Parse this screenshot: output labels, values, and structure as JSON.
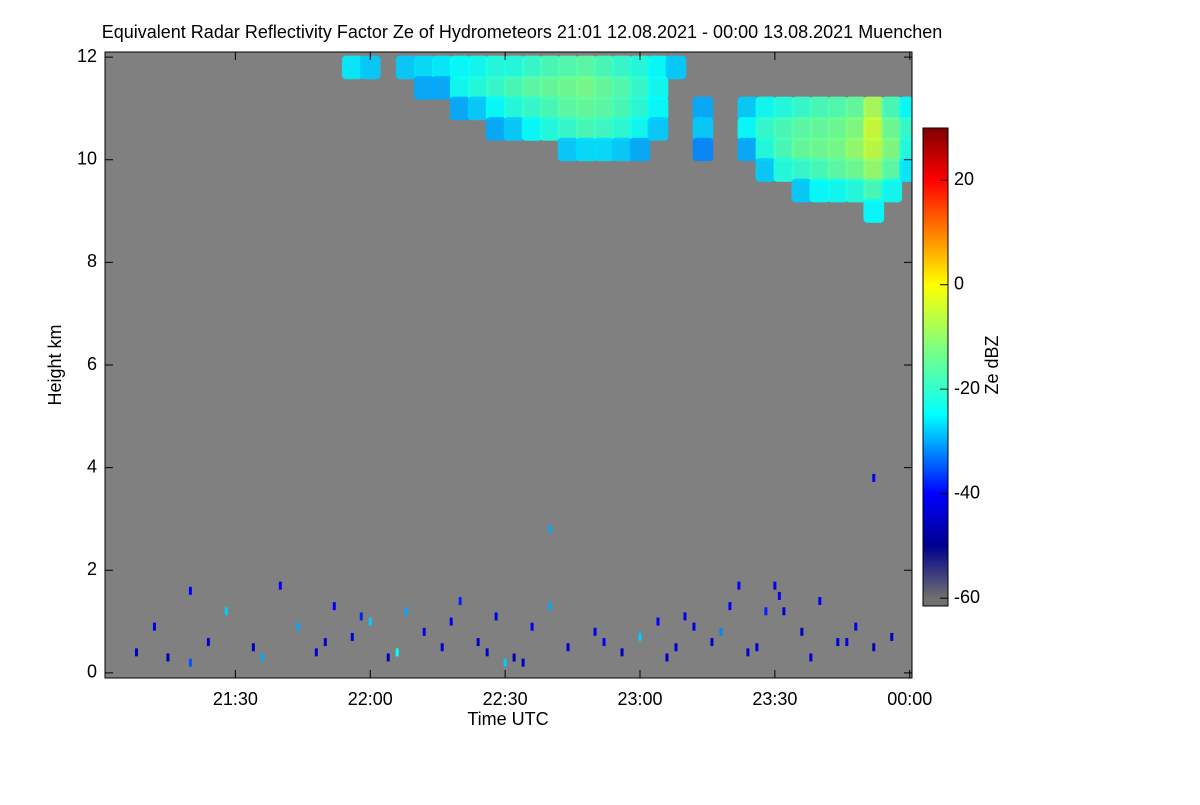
{
  "chart_data": {
    "type": "heatmap",
    "title": "Equivalent Radar Reflectivity Factor Ze of Hydrometeors   21:01 12.08.2021 - 00:00 13.08.2021 Muenchen",
    "x_label": "Time UTC",
    "y_label": "Height km",
    "colorbar_label": "Ze dBZ",
    "xlim": [
      1,
      180.5
    ],
    "xticks": [
      {
        "value": 30,
        "label": "21:30"
      },
      {
        "value": 60,
        "label": "22:00"
      },
      {
        "value": 90,
        "label": "22:30"
      },
      {
        "value": 120,
        "label": "23:00"
      },
      {
        "value": 150,
        "label": "23:30"
      },
      {
        "value": 180,
        "label": "00:00"
      }
    ],
    "ylim": [
      -0.1,
      12.1
    ],
    "yticks": [
      0,
      2,
      4,
      6,
      8,
      10,
      12
    ],
    "zlim": [
      -61.5,
      30
    ],
    "zticks": [
      -60,
      -40,
      -20,
      0,
      20
    ],
    "background": "#808080",
    "colorscale": [
      {
        "value": -60,
        "color": "#707070"
      },
      {
        "value": -50,
        "color": "#00008f"
      },
      {
        "value": -40,
        "color": "#0000ff"
      },
      {
        "value": -25,
        "color": "#00ffff"
      },
      {
        "value": -12,
        "color": "#7fff7f"
      },
      {
        "value": 0,
        "color": "#ffff00"
      },
      {
        "value": 10,
        "color": "#ff8000"
      },
      {
        "value": 20,
        "color": "#ff0000"
      },
      {
        "value": 30,
        "color": "#800000"
      }
    ],
    "cloud_cells": {
      "x": [
        56,
        60,
        68,
        72,
        76,
        72,
        76,
        80,
        80,
        80,
        84,
        84,
        84,
        88,
        88,
        88,
        88,
        92,
        92,
        92,
        92,
        96,
        96,
        96,
        96,
        100,
        100,
        100,
        100,
        104,
        104,
        104,
        104,
        104,
        108,
        108,
        108,
        108,
        108,
        112,
        112,
        112,
        112,
        112,
        116,
        116,
        116,
        116,
        116,
        120,
        120,
        120,
        120,
        120,
        124,
        124,
        124,
        124,
        128,
        134,
        134,
        134,
        144,
        144,
        144,
        148,
        148,
        148,
        148,
        152,
        152,
        152,
        152,
        156,
        156,
        156,
        156,
        156,
        160,
        160,
        160,
        160,
        160,
        164,
        164,
        164,
        164,
        164,
        168,
        168,
        168,
        168,
        168,
        172,
        172,
        172,
        172,
        172,
        172,
        176,
        176,
        176,
        176,
        176,
        180,
        180,
        180,
        180
      ],
      "y": [
        11.8,
        11.8,
        11.8,
        11.8,
        11.8,
        11.4,
        11.4,
        11.8,
        11.4,
        11.0,
        11.8,
        11.4,
        11.0,
        11.8,
        11.4,
        11.0,
        10.6,
        11.8,
        11.4,
        11.0,
        10.6,
        11.8,
        11.4,
        11.0,
        10.6,
        11.8,
        11.4,
        11.0,
        10.6,
        11.8,
        11.4,
        11.0,
        10.6,
        10.2,
        11.8,
        11.4,
        11.0,
        10.6,
        10.2,
        11.8,
        11.4,
        11.0,
        10.6,
        10.2,
        11.8,
        11.4,
        11.0,
        10.6,
        10.2,
        11.8,
        11.4,
        11.0,
        10.6,
        10.2,
        11.8,
        11.4,
        11.0,
        10.6,
        11.8,
        11.0,
        10.6,
        10.2,
        11.0,
        10.6,
        10.2,
        11.0,
        10.6,
        10.2,
        9.8,
        11.0,
        10.6,
        10.2,
        9.8,
        11.0,
        10.6,
        10.2,
        9.8,
        9.4,
        11.0,
        10.6,
        10.2,
        9.8,
        9.4,
        11.0,
        10.6,
        10.2,
        9.8,
        9.4,
        11.0,
        10.6,
        10.2,
        9.8,
        9.4,
        11.0,
        10.6,
        10.2,
        9.8,
        9.4,
        9.0,
        11.0,
        10.6,
        10.2,
        9.8,
        9.4,
        11.0,
        10.6,
        10.2,
        9.8
      ],
      "values": [
        -26,
        -28,
        -28,
        -27,
        -26,
        -30,
        -30,
        -25,
        -24,
        -30,
        -24,
        -22,
        -28,
        -22,
        -20,
        -25,
        -30,
        -22,
        -18,
        -22,
        -28,
        -20,
        -16,
        -20,
        -25,
        -18,
        -15,
        -18,
        -22,
        -17,
        -14,
        -16,
        -20,
        -28,
        -16,
        -13,
        -15,
        -18,
        -27,
        -18,
        -15,
        -16,
        -19,
        -27,
        -20,
        -17,
        -18,
        -21,
        -28,
        -22,
        -20,
        -21,
        -24,
        -30,
        -25,
        -24,
        -25,
        -28,
        -28,
        -30,
        -28,
        -32,
        -28,
        -25,
        -30,
        -24,
        -20,
        -22,
        -28,
        -22,
        -18,
        -18,
        -22,
        -20,
        -16,
        -15,
        -20,
        -28,
        -18,
        -15,
        -14,
        -18,
        -25,
        -17,
        -14,
        -13,
        -16,
        -24,
        -15,
        -12,
        -10,
        -14,
        -22,
        -8,
        -5,
        -6,
        -10,
        -18,
        -25,
        -18,
        -14,
        -12,
        -16,
        -24,
        -25,
        -20,
        -22,
        -26
      ]
    },
    "echo_points": {
      "x": [
        8,
        12,
        15,
        20,
        24,
        28,
        34,
        40,
        44,
        48,
        52,
        56,
        60,
        64,
        68,
        72,
        76,
        80,
        84,
        88,
        92,
        96,
        100,
        104,
        110,
        116,
        120,
        124,
        128,
        132,
        136,
        140,
        144,
        148,
        150,
        151,
        152,
        156,
        160,
        164,
        168,
        172,
        172,
        176,
        20,
        36,
        50,
        58,
        66,
        78,
        86,
        94,
        112,
        126,
        138,
        146,
        130,
        142,
        158,
        166,
        100,
        90
      ],
      "y": [
        0.4,
        0.9,
        0.3,
        1.6,
        0.6,
        1.2,
        0.5,
        1.7,
        0.9,
        0.4,
        1.3,
        0.7,
        1.0,
        0.3,
        1.2,
        0.8,
        0.5,
        1.4,
        0.6,
        1.1,
        0.3,
        0.9,
        1.3,
        0.5,
        0.8,
        0.4,
        0.7,
        1.0,
        0.5,
        0.9,
        0.6,
        1.3,
        0.4,
        1.2,
        1.7,
        1.5,
        1.2,
        0.8,
        1.4,
        0.6,
        0.9,
        3.8,
        0.5,
        0.7,
        0.2,
        0.3,
        0.6,
        1.1,
        0.4,
        1.0,
        0.4,
        0.2,
        0.6,
        0.3,
        0.8,
        0.5,
        1.1,
        1.7,
        0.3,
        0.6,
        2.8,
        0.2
      ],
      "values": [
        -45,
        -42,
        -48,
        -40,
        -44,
        -28,
        -46,
        -40,
        -30,
        -45,
        -40,
        -43,
        -28,
        -46,
        -30,
        -42,
        -44,
        -38,
        -45,
        -42,
        -47,
        -40,
        -30,
        -44,
        -42,
        -46,
        -28,
        -40,
        -44,
        -42,
        -45,
        -40,
        -44,
        -38,
        -42,
        -40,
        -43,
        -45,
        -41,
        -44,
        -42,
        -40,
        -46,
        -45,
        -35,
        -30,
        -44,
        -38,
        -25,
        -42,
        -44,
        -46,
        -40,
        -45,
        -32,
        -44,
        -42,
        -40,
        -44,
        -43,
        -30,
        -28
      ]
    }
  }
}
